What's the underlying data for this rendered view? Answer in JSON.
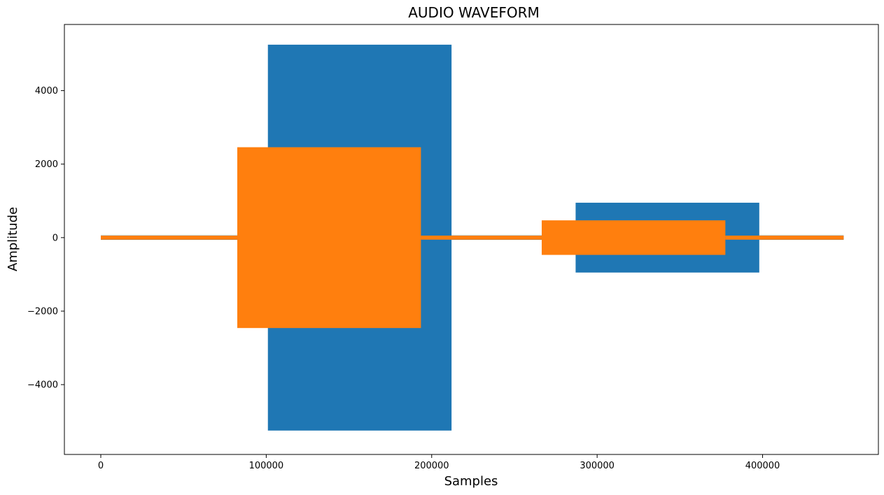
{
  "chart_data": {
    "type": "area",
    "title": "AUDIO WAVEFORM",
    "xlabel": "Samples",
    "ylabel": "Amplitude",
    "xlim": [
      -22000,
      470000
    ],
    "ylim": [
      -5900,
      5800
    ],
    "xticks": [
      0,
      100000,
      200000,
      300000,
      400000
    ],
    "xtick_labels": [
      "0",
      "100000",
      "200000",
      "300000",
      "400000"
    ],
    "yticks": [
      -4000,
      -2000,
      0,
      2000,
      4000
    ],
    "ytick_labels": [
      "−4000",
      "−2000",
      "0",
      "2000",
      "4000"
    ],
    "grid": false,
    "series": [
      {
        "color": "#1f77b4",
        "segments": [
          {
            "x_start": 0,
            "x_end": 101000,
            "amplitude": 60
          },
          {
            "x_start": 101000,
            "x_end": 212000,
            "amplitude": 5250
          },
          {
            "x_start": 212000,
            "x_end": 287000,
            "amplitude": 60
          },
          {
            "x_start": 287000,
            "x_end": 398000,
            "amplitude": 950
          },
          {
            "x_start": 398000,
            "x_end": 449000,
            "amplitude": 60
          }
        ]
      },
      {
        "color": "#ff7f0e",
        "segments": [
          {
            "x_start": 0,
            "x_end": 82500,
            "amplitude": 55
          },
          {
            "x_start": 82500,
            "x_end": 193500,
            "amplitude": 2460
          },
          {
            "x_start": 193500,
            "x_end": 266500,
            "amplitude": 55
          },
          {
            "x_start": 266500,
            "x_end": 377500,
            "amplitude": 470
          },
          {
            "x_start": 377500,
            "x_end": 449000,
            "amplitude": 55
          }
        ]
      }
    ]
  }
}
